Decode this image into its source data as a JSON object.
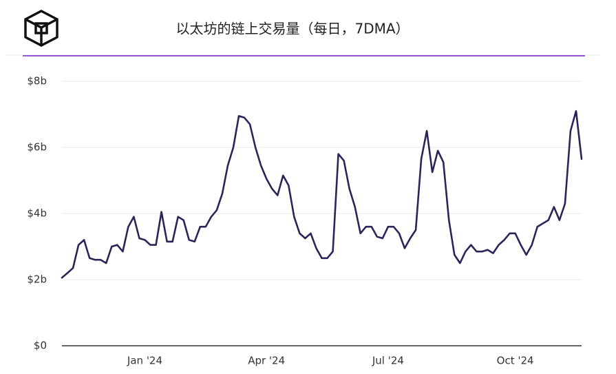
{
  "chart_data": {
    "type": "line",
    "title": "以太坊的链上交易量（每日，7DMA）",
    "categories": [
      null,
      null,
      null,
      null,
      null,
      null,
      null,
      null,
      null,
      null,
      null,
      null,
      null,
      null,
      null,
      "Jan '24",
      null,
      null,
      null,
      null,
      null,
      null,
      null,
      null,
      null,
      null,
      null,
      null,
      null,
      null,
      null,
      null,
      null,
      null,
      null,
      null,
      null,
      "Apr '24",
      null,
      null,
      null,
      null,
      null,
      null,
      null,
      null,
      null,
      null,
      null,
      null,
      null,
      null,
      null,
      null,
      null,
      null,
      null,
      null,
      null,
      "Jul '24",
      null,
      null,
      null,
      null,
      null,
      null,
      null,
      null,
      null,
      null,
      null,
      null,
      null,
      null,
      null,
      null,
      null,
      null,
      null,
      null,
      null,
      null,
      "Oct '24",
      null,
      null,
      null,
      null,
      null,
      null,
      null,
      null,
      null,
      null,
      null,
      null
    ],
    "values": [
      2.06,
      2.2,
      2.35,
      3.05,
      3.2,
      2.65,
      2.6,
      2.6,
      2.5,
      3.0,
      3.05,
      2.85,
      3.6,
      3.9,
      3.25,
      3.2,
      3.05,
      3.05,
      4.05,
      3.15,
      3.15,
      3.9,
      3.8,
      3.2,
      3.15,
      3.6,
      3.6,
      3.9,
      4.1,
      4.6,
      5.45,
      6.0,
      6.95,
      6.9,
      6.7,
      6.0,
      5.45,
      5.05,
      4.75,
      4.55,
      5.15,
      4.85,
      3.9,
      3.4,
      3.25,
      3.4,
      2.95,
      2.65,
      2.65,
      2.85,
      5.8,
      5.6,
      4.75,
      4.2,
      3.4,
      3.6,
      3.6,
      3.3,
      3.25,
      3.6,
      3.6,
      3.4,
      2.95,
      3.25,
      3.5,
      5.65,
      6.5,
      5.25,
      5.9,
      5.55,
      3.8,
      2.75,
      2.5,
      2.85,
      3.05,
      2.85,
      2.85,
      2.9,
      2.8,
      3.05,
      3.2,
      3.4,
      3.4,
      3.05,
      2.75,
      3.05,
      3.6,
      3.7,
      3.8,
      4.2,
      3.8,
      4.3,
      6.5,
      7.1,
      5.65
    ],
    "color": "#2b2458",
    "ylim": [
      0,
      8
    ],
    "yticks": [
      {
        "value": 0,
        "label": "$0"
      },
      {
        "value": 2,
        "label": "$2b"
      },
      {
        "value": 4,
        "label": "$4b"
      },
      {
        "value": 6,
        "label": "$6b"
      },
      {
        "value": 8,
        "label": "$8b"
      }
    ],
    "grid": true
  }
}
